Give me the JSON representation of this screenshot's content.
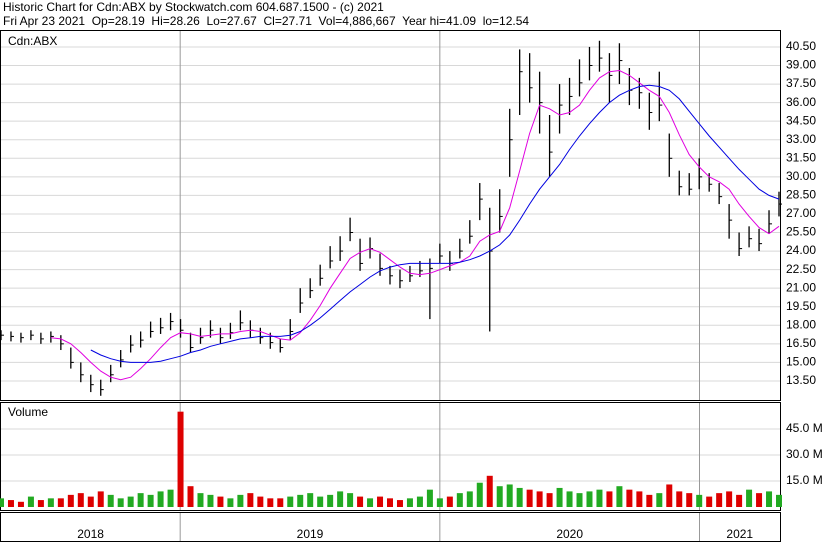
{
  "header": {
    "line1": "Historic Chart for Cdn:ABX by Stockwatch.com 604.687.1500 - (c) 2021",
    "line2": "Fri Apr 23 2021  Op=28.19  Hi=28.26  Lo=27.67  Cl=27.71  Vol=4,886,667  Year hi=41.09  lo=12.54"
  },
  "chart_data": [
    {
      "type": "hlc",
      "label": "Cdn:ABX",
      "color": "#000000",
      "grid": true,
      "xlim": [
        2018.31,
        2021.31
      ],
      "year_labels": [
        2018,
        2019,
        2020,
        2021
      ],
      "ylim": [
        11.96,
        41.79
      ],
      "yticks": [
        {
          "value": 40.5,
          "label": "40.50"
        },
        {
          "value": 39,
          "label": "39.00"
        },
        {
          "value": 37.5,
          "label": "37.50"
        },
        {
          "value": 36,
          "label": "36.00"
        },
        {
          "value": 34.5,
          "label": "34.50"
        },
        {
          "value": 33,
          "label": "33.00"
        },
        {
          "value": 31.5,
          "label": "31.50"
        },
        {
          "value": 30,
          "label": "30.00"
        },
        {
          "value": 28.5,
          "label": "28.50"
        },
        {
          "value": 27,
          "label": "27.00"
        },
        {
          "value": 25.5,
          "label": "25.50"
        },
        {
          "value": 24,
          "label": "24.00"
        },
        {
          "value": 22.5,
          "label": "22.50"
        },
        {
          "value": 21,
          "label": "21.00"
        },
        {
          "value": 19.5,
          "label": "19.50"
        },
        {
          "value": 18,
          "label": "18.00"
        },
        {
          "value": 16.5,
          "label": "16.50"
        },
        {
          "value": 15,
          "label": "15.00"
        },
        {
          "value": 13.5,
          "label": "13.50"
        }
      ],
      "high": [
        17.6,
        17.5,
        17.4,
        17.6,
        17.4,
        17.5,
        17.2,
        16.2,
        15.0,
        14.0,
        13.6,
        14.8,
        16.0,
        17.2,
        17.5,
        18.3,
        18.6,
        19.0,
        18.5,
        17.4,
        17.8,
        18.4,
        17.8,
        18.2,
        19.2,
        18.4,
        17.8,
        17.4,
        16.9,
        18.5,
        21.0,
        21.8,
        22.9,
        24.4,
        25.2,
        26.7,
        25.0,
        25.1,
        23.8,
        22.8,
        22.5,
        22.8,
        23.2,
        23.4,
        24.6,
        24.0,
        25.0,
        26.5,
        29.5,
        27.5,
        29.0,
        35.5,
        40.3,
        40.0,
        38.5,
        35.0,
        37.5,
        38.0,
        39.5,
        40.5,
        41.0,
        40.0,
        40.8,
        38.8,
        38.0,
        36.8,
        38.5,
        33.5,
        30.5,
        30.3,
        31.5,
        30.3,
        29.5,
        27.8,
        25.5,
        26.0,
        25.8,
        27.3,
        28.8
      ],
      "low": [
        16.8,
        16.7,
        16.6,
        16.8,
        16.5,
        16.6,
        16.0,
        14.5,
        13.4,
        12.6,
        12.3,
        13.4,
        14.6,
        15.8,
        16.2,
        17.0,
        17.3,
        17.6,
        17.0,
        15.8,
        16.5,
        17.0,
        16.5,
        16.9,
        17.6,
        17.0,
        16.5,
        16.1,
        15.8,
        16.8,
        19.0,
        20.2,
        21.2,
        22.6,
        23.2,
        24.8,
        22.4,
        23.4,
        22.0,
        21.3,
        21.0,
        21.5,
        21.9,
        18.5,
        23.0,
        22.4,
        23.4,
        24.6,
        26.5,
        17.5,
        25.5,
        30.0,
        35.0,
        36.0,
        33.5,
        30.0,
        33.5,
        35.0,
        36.5,
        37.8,
        38.5,
        36.0,
        37.5,
        35.8,
        35.5,
        33.8,
        34.5,
        30.0,
        28.5,
        28.5,
        29.0,
        28.8,
        27.8,
        25.0,
        23.6,
        24.3,
        24.0,
        25.4,
        26.8
      ],
      "close": [
        17.2,
        17.1,
        17.0,
        17.2,
        16.9,
        17.1,
        16.5,
        15.0,
        14.0,
        13.2,
        12.8,
        14.0,
        15.2,
        16.4,
        16.8,
        17.5,
        17.8,
        18.3,
        17.6,
        16.2,
        17.0,
        17.6,
        17.0,
        17.4,
        18.2,
        17.6,
        17.0,
        16.6,
        16.2,
        17.5,
        19.8,
        20.8,
        21.8,
        23.2,
        24.0,
        25.5,
        23.0,
        24.2,
        22.6,
        22.0,
        21.6,
        22.0,
        22.4,
        22.6,
        23.6,
        23.0,
        24.0,
        25.2,
        28.2,
        24.0,
        26.8,
        33.0,
        38.5,
        37.2,
        36.0,
        32.0,
        35.8,
        36.5,
        37.6,
        39.0,
        39.6,
        38.2,
        39.4,
        37.0,
        36.8,
        35.2,
        35.8,
        31.5,
        29.2,
        29.0,
        30.0,
        29.4,
        28.4,
        26.5,
        24.2,
        25.0,
        24.6,
        26.2,
        27.8
      ],
      "series": [
        {
          "color": "#e000e0",
          "values": [
            null,
            null,
            null,
            null,
            null,
            17.0,
            16.9,
            16.5,
            15.8,
            15.0,
            14.3,
            13.8,
            13.6,
            13.8,
            14.5,
            15.3,
            16.2,
            17.0,
            17.4,
            17.3,
            17.1,
            17.2,
            17.3,
            17.3,
            17.5,
            17.6,
            17.5,
            17.2,
            16.9,
            16.8,
            17.4,
            18.4,
            19.6,
            21.0,
            22.2,
            23.4,
            23.9,
            24.2,
            23.9,
            23.3,
            22.7,
            22.2,
            22.1,
            22.2,
            22.5,
            22.8,
            23.1,
            23.6,
            24.8,
            25.3,
            25.6,
            27.5,
            30.5,
            33.5,
            35.8,
            35.5,
            35.0,
            35.2,
            35.8,
            37.0,
            38.0,
            38.5,
            38.6,
            38.2,
            37.6,
            37.0,
            36.5,
            35.2,
            33.4,
            31.8,
            30.8,
            30.0,
            29.6,
            29.0,
            27.8,
            26.8,
            25.9,
            25.4,
            26.0
          ]
        },
        {
          "color": "#0000e0",
          "values": [
            null,
            null,
            null,
            null,
            null,
            null,
            null,
            null,
            null,
            16.0,
            15.6,
            15.3,
            15.1,
            15.0,
            15.0,
            15.0,
            15.1,
            15.3,
            15.5,
            15.8,
            16.0,
            16.3,
            16.5,
            16.7,
            16.9,
            17.0,
            17.1,
            17.1,
            17.1,
            17.2,
            17.5,
            18.0,
            18.6,
            19.3,
            20.0,
            20.7,
            21.3,
            21.9,
            22.4,
            22.7,
            22.9,
            23.0,
            23.0,
            23.0,
            23.0,
            23.0,
            23.1,
            23.3,
            23.6,
            24.0,
            24.5,
            25.3,
            26.5,
            27.8,
            29.0,
            30.0,
            31.0,
            32.2,
            33.3,
            34.3,
            35.2,
            36.0,
            36.6,
            37.0,
            37.3,
            37.4,
            37.3,
            37.0,
            36.3,
            35.3,
            34.3,
            33.3,
            32.4,
            31.5,
            30.6,
            29.8,
            29.0,
            28.5,
            28.2
          ]
        }
      ]
    },
    {
      "type": "bar",
      "label": "Volume",
      "up_color": "#22aa22",
      "down_color": "#dd0000",
      "ylim": [
        0,
        60
      ],
      "yticks": [
        {
          "value": 45,
          "label": "45.0 M"
        },
        {
          "value": 30,
          "label": "30.0 M"
        },
        {
          "value": 15,
          "label": "15.0 M"
        }
      ],
      "values": [
        5,
        4,
        3,
        6,
        4,
        5,
        5,
        7,
        8,
        6,
        9,
        7,
        5,
        6,
        8,
        7,
        9,
        10,
        55,
        12,
        8,
        7,
        6,
        5,
        7,
        8,
        6,
        5,
        5,
        6,
        7,
        8,
        6,
        7,
        9,
        8,
        6,
        5,
        6,
        5,
        4,
        5,
        6,
        10,
        5,
        6,
        8,
        9,
        14,
        18,
        12,
        13,
        11,
        10,
        9,
        8,
        11,
        9,
        8,
        9,
        10,
        9,
        12,
        10,
        9,
        7,
        8,
        13,
        9,
        8,
        7,
        6,
        8,
        9,
        7,
        10,
        8,
        9,
        7
      ]
    }
  ]
}
